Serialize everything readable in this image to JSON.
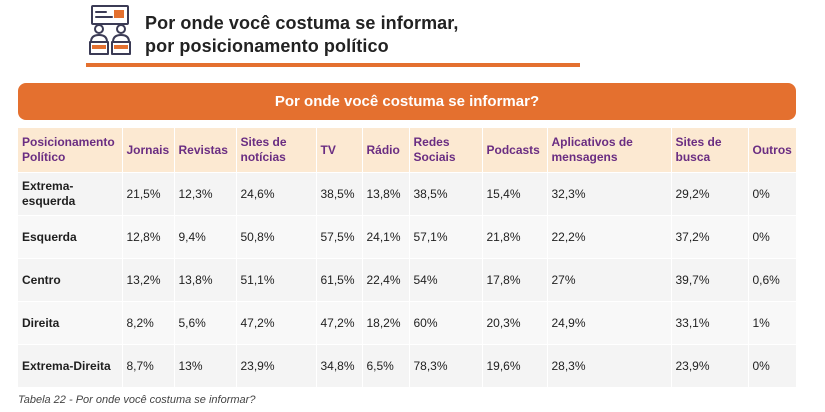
{
  "header": {
    "title_line1": "Por onde você costuma se informar,",
    "title_line2": "por posicionamento político",
    "icon": "people-at-board-icon",
    "accent_color": "#e4702f"
  },
  "table_title": "Por onde você costuma se informar?",
  "columns": [
    "Posicionamento Político",
    "Jornais",
    "Revistas",
    "Sites de notícias",
    "TV",
    "Rádio",
    "Redes Sociais",
    "Podcasts",
    "Aplicativos de mensagens",
    "Sites de busca",
    "Outros"
  ],
  "rows": [
    [
      "Extrema-esquerda",
      "21,5%",
      "12,3%",
      "24,6%",
      "38,5%",
      "13,8%",
      "38,5%",
      "15,4%",
      "32,3%",
      "29,2%",
      "0%"
    ],
    [
      "Esquerda",
      "12,8%",
      "9,4%",
      "50,8%",
      "57,5%",
      "24,1%",
      "57,1%",
      "21,8%",
      "22,2%",
      "37,2%",
      "0%"
    ],
    [
      "Centro",
      "13,2%",
      "13,8%",
      "51,1%",
      "61,5%",
      "22,4%",
      "54%",
      "17,8%",
      "27%",
      "39,7%",
      "0,6%"
    ],
    [
      "Direita",
      "8,2%",
      "5,6%",
      "47,2%",
      "47,2%",
      "18,2%",
      "60%",
      "20,3%",
      "24,9%",
      "33,1%",
      "1%"
    ],
    [
      "Extrema-Direita",
      "8,7%",
      "13%",
      "23,9%",
      "34,8%",
      "6,5%",
      "78,3%",
      "19,6%",
      "28,3%",
      "23,9%",
      "0%"
    ]
  ],
  "caption": "Tabela 22 - Por onde você costuma se informar?"
}
